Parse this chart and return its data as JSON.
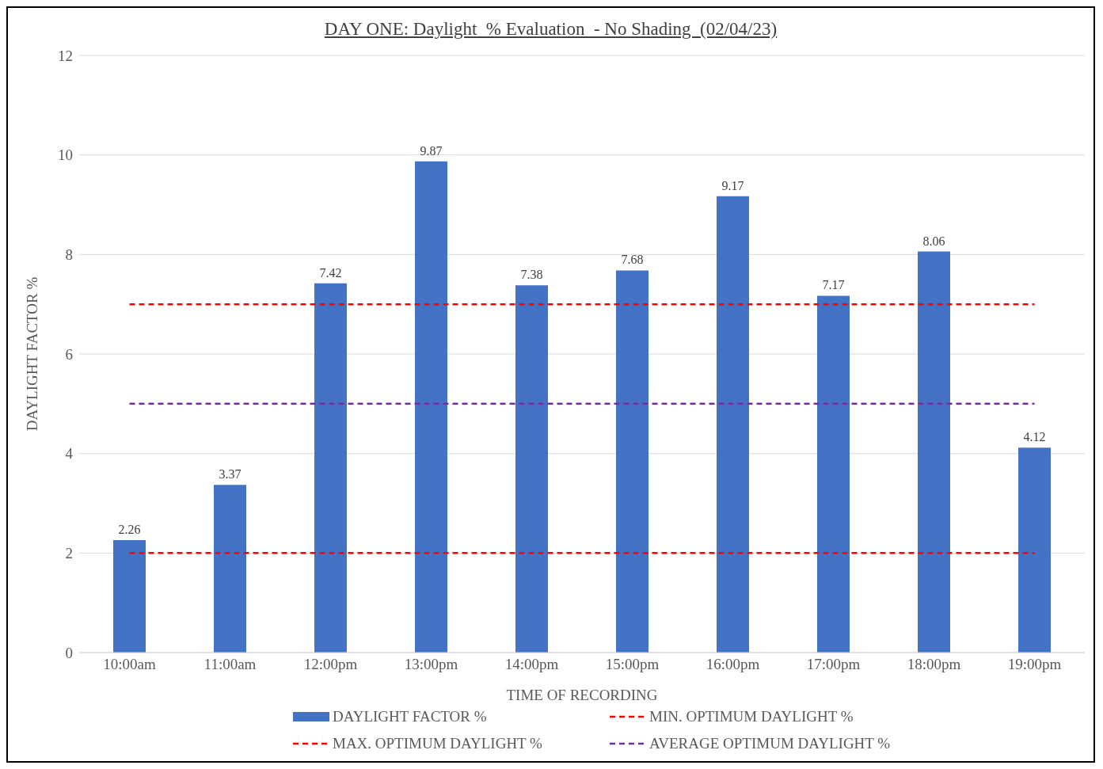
{
  "chart_data": {
    "type": "bar",
    "title": "DAY ONE: Daylight  % Evaluation  - No Shading  (02/04/23)",
    "xlabel": "TIME OF RECORDING",
    "ylabel": "DAYLIGHT FACTOR %",
    "categories": [
      "10:00am",
      "11:00am",
      "12:00pm",
      "13:00pm",
      "14:00pm",
      "15:00pm",
      "16:00pm",
      "17:00pm",
      "18:00pm",
      "19:00pm"
    ],
    "series": [
      {
        "name": "DAYLIGHT FACTOR %",
        "color": "#4472c4",
        "values": [
          2.26,
          3.37,
          7.42,
          9.87,
          7.38,
          7.68,
          9.17,
          7.17,
          8.06,
          4.12
        ],
        "value_labels": [
          "2.26",
          "3.37",
          "7.42",
          "9.87",
          "7.38",
          "7.68",
          "9.17",
          "7.17",
          "8.06",
          "4.12"
        ]
      },
      {
        "name": "MIN. OPTIMUM DAYLIGHT %",
        "type": "line",
        "color": "#ff0000",
        "line_style": "dashed",
        "values": [
          2,
          2,
          2,
          2,
          2,
          2,
          2,
          2,
          2,
          2
        ]
      },
      {
        "name": "MAX. OPTIMUM DAYLIGHT %",
        "type": "line",
        "color": "#ff0000",
        "line_style": "dashed",
        "values": [
          7,
          7,
          7,
          7,
          7,
          7,
          7,
          7,
          7,
          7
        ]
      },
      {
        "name": "AVERAGE OPTIMUM DAYLIGHT %",
        "type": "line",
        "color": "#7030a0",
        "line_style": "dashed",
        "values": [
          5,
          5,
          5,
          5,
          5,
          5,
          5,
          5,
          5,
          5
        ]
      }
    ],
    "ylim": [
      0,
      12
    ],
    "yticks": [
      0,
      2,
      4,
      6,
      8,
      10,
      12
    ],
    "grid": "y",
    "legend": "bottom",
    "marker": "none"
  }
}
